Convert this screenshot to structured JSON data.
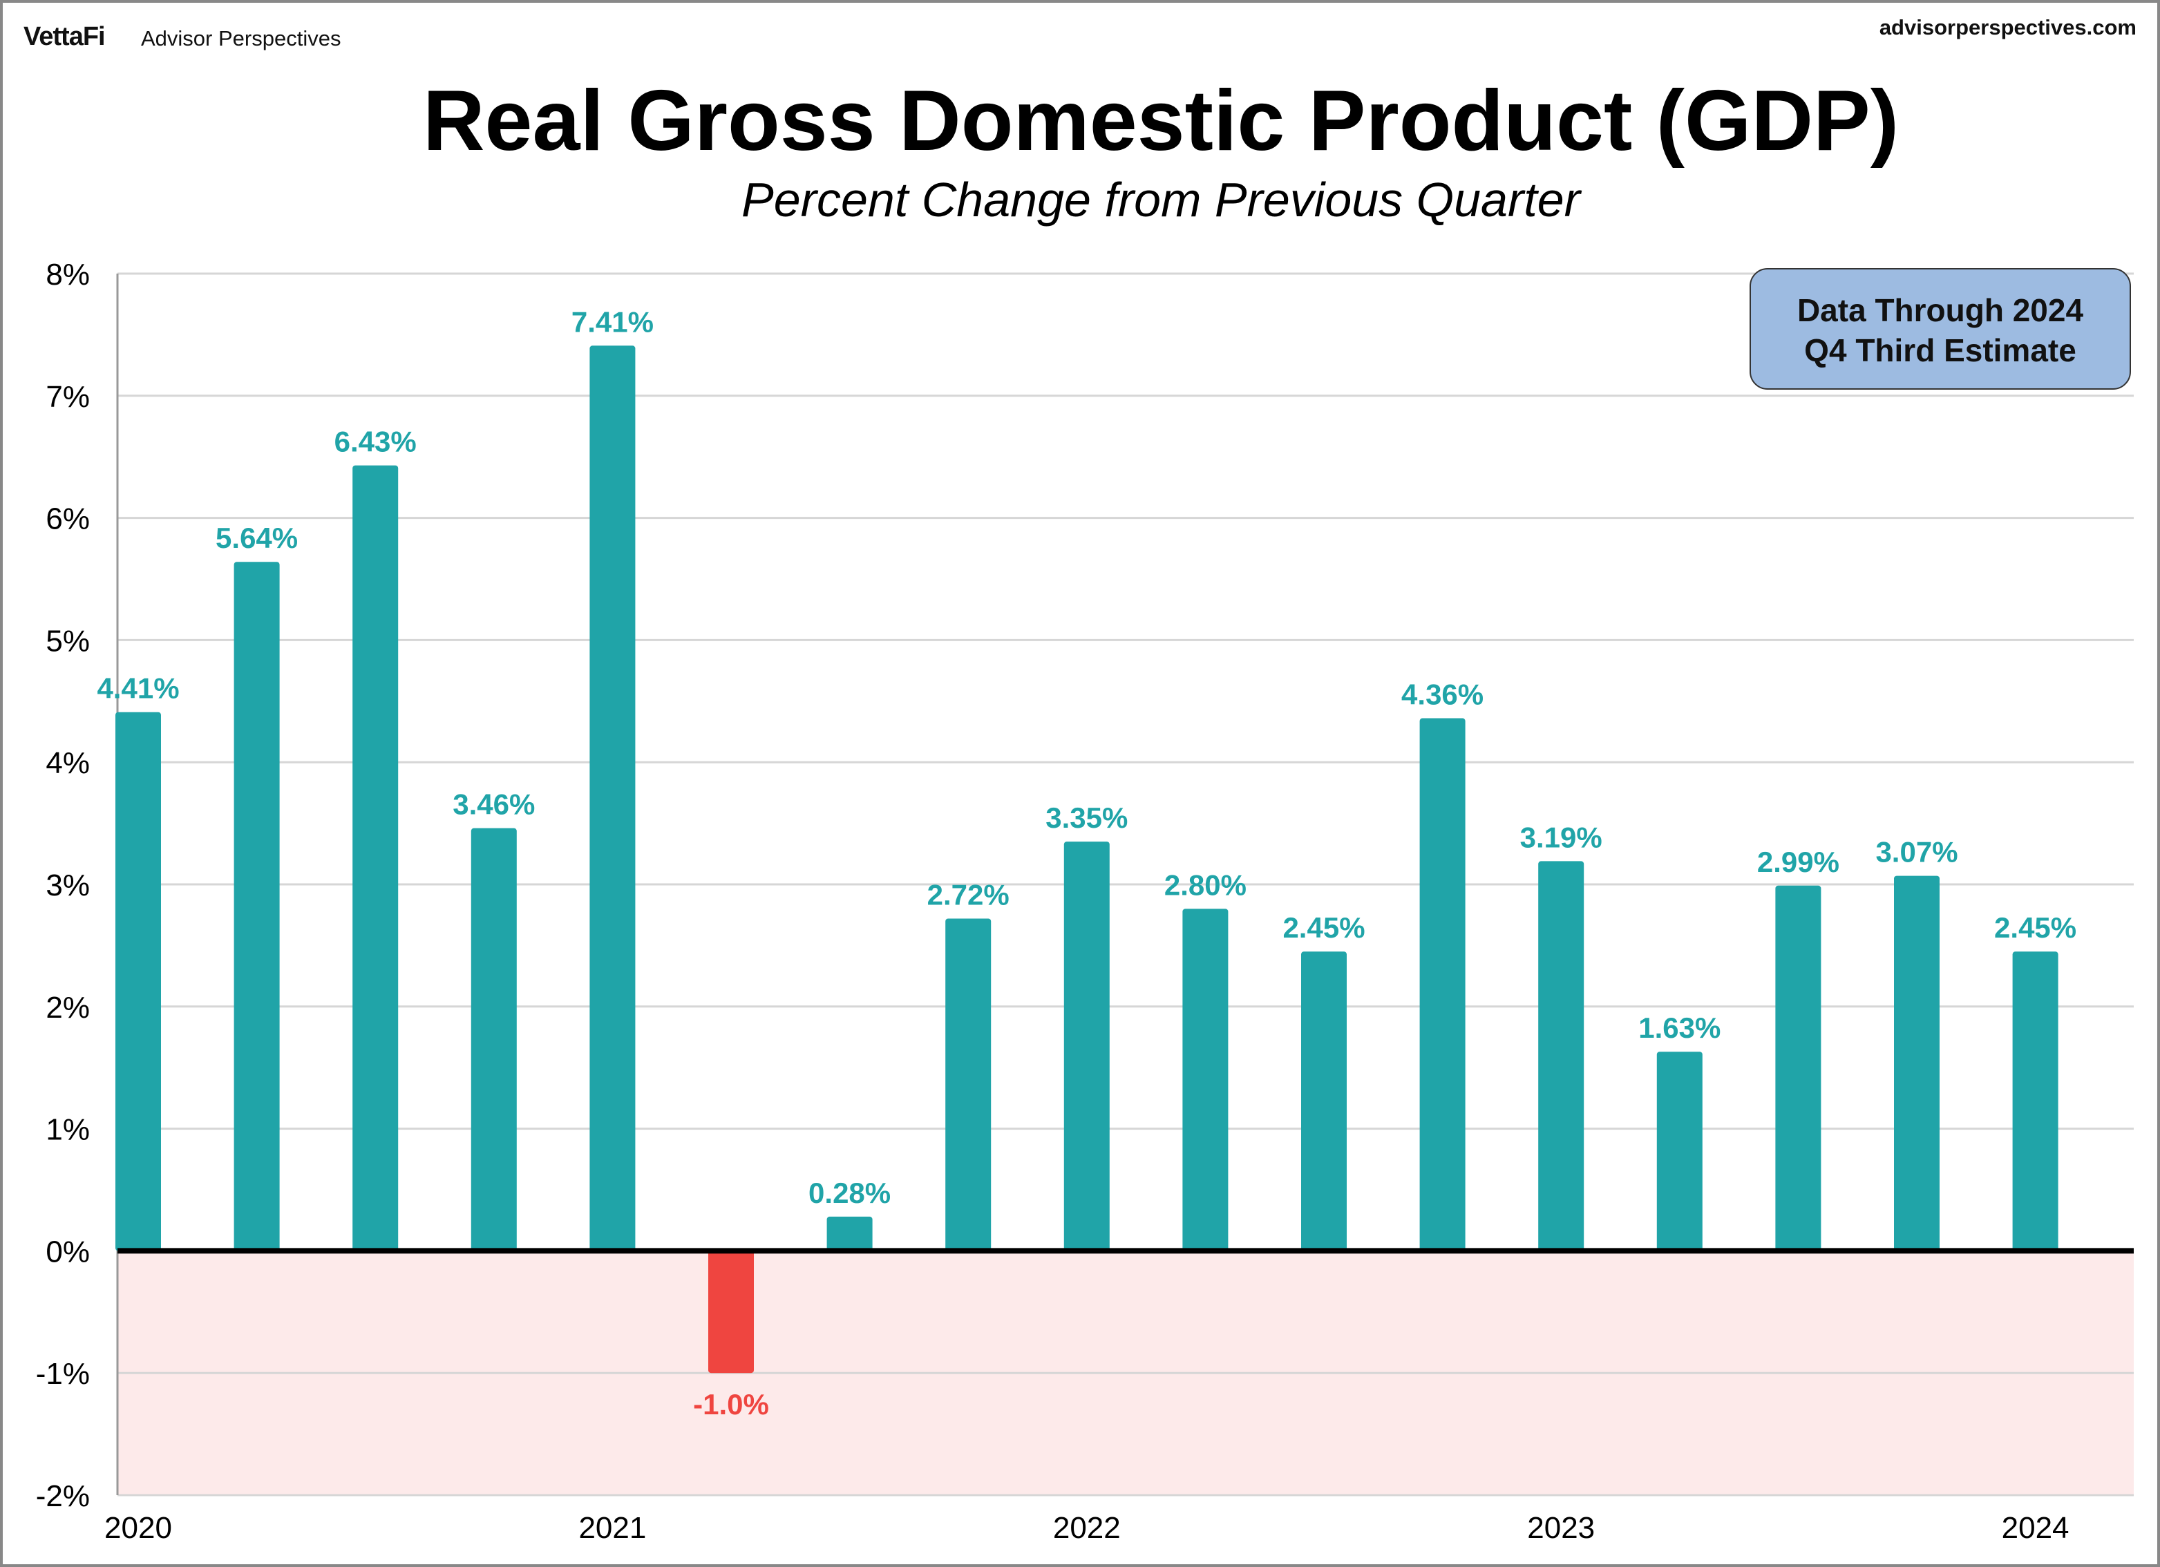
{
  "header": {
    "logo_text": "VettaFi",
    "brand": "Advisor Perspectives",
    "site": "advisorperspectives.com"
  },
  "note": {
    "line1": "Data Through 2024",
    "line2": "Q4 Third Estimate"
  },
  "colors": {
    "positive": "#20a4a8",
    "negative": "#ef4540",
    "negative_region": "#fdeaea",
    "note_box": "#9dbbe1"
  },
  "chart_data": {
    "type": "bar",
    "title": "Real Gross Domestic Product (GDP)",
    "subtitle": "Percent Change from Previous Quarter",
    "values": [
      4.41,
      5.64,
      6.43,
      3.46,
      7.41,
      -1.0,
      0.28,
      2.72,
      3.35,
      2.8,
      2.45,
      4.36,
      3.19,
      1.63,
      2.99,
      3.07,
      2.45
    ],
    "labels": [
      "4.41%",
      "5.64%",
      "6.43%",
      "3.46%",
      "7.41%",
      "-1.0%",
      "0.28%",
      "2.72%",
      "3.35%",
      "2.80%",
      "2.45%",
      "4.36%",
      "3.19%",
      "1.63%",
      "2.99%",
      "3.07%",
      "2.45%"
    ],
    "x_ticks": [
      {
        "index": 0,
        "label": "2020"
      },
      {
        "index": 4,
        "label": "2021"
      },
      {
        "index": 8,
        "label": "2022"
      },
      {
        "index": 12,
        "label": "2023"
      },
      {
        "index": 16,
        "label": "2024"
      }
    ],
    "y_ticks": [
      "8%",
      "7%",
      "6%",
      "5%",
      "4%",
      "3%",
      "2%",
      "1%",
      "0%",
      "-1%",
      "-2%"
    ],
    "ylim": [
      -2,
      8
    ],
    "grid": true,
    "xlabel": "",
    "ylabel": ""
  }
}
